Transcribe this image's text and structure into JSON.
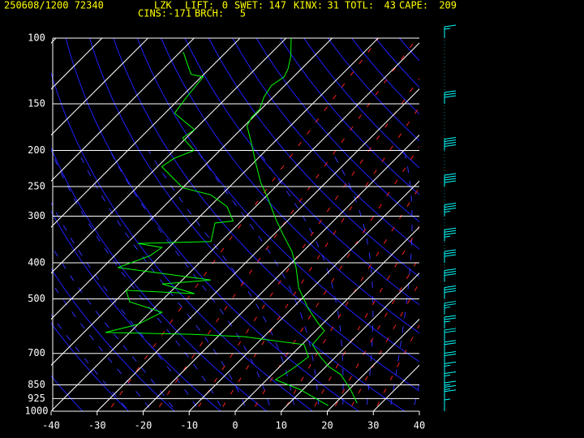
{
  "header": {
    "station_time": "250608/1200 72340",
    "site": "LZK",
    "indices": [
      {
        "label": "LIFT:",
        "value": 0
      },
      {
        "label": "SWET:",
        "value": 147
      },
      {
        "label": "KINX:",
        "value": 31
      },
      {
        "label": "TOTL:",
        "value": 43
      },
      {
        "label": "CAPE:",
        "value": 209
      }
    ],
    "indices_line2": [
      {
        "label": "CINS:",
        "value": -171
      },
      {
        "label": "BRCH:",
        "value": 5
      }
    ]
  },
  "chart_data": {
    "type": "skewt",
    "log_scale": true,
    "xlim": [
      -40,
      40
    ],
    "xticks": [
      -40,
      -30,
      -20,
      -10,
      0,
      10,
      20,
      30,
      40
    ],
    "ylim": [
      1000,
      100
    ],
    "yticks": [
      1000,
      925,
      850,
      700,
      500,
      400,
      300,
      250,
      200,
      150,
      100
    ],
    "series": [
      {
        "color": "#00ff00",
        "pressure": [
          951,
          874,
          798,
          759,
          715,
          663,
          609,
          580,
          530,
          467,
          412,
          373,
          338,
          305,
          269,
          244,
          215,
          190,
          172,
          163,
          155,
          144,
          134,
          127,
          121,
          112,
          100
        ],
        "values": [
          24.7,
          20.3,
          15.0,
          10.6,
          6.7,
          2.3,
          1.9,
          -1.2,
          -6.5,
          -13.0,
          -18.0,
          -22.4,
          -27.7,
          -33.0,
          -39.1,
          -44.1,
          -49.7,
          -55.0,
          -59.4,
          -60.3,
          -60.3,
          -62.0,
          -62.9,
          -62.0,
          -62.9,
          -65.0,
          -68.9
        ]
      },
      {
        "color": "#00ff00",
        "pressure": [
          966,
          874,
          823,
          771,
          715,
          663,
          631,
          622,
          615,
          585,
          543,
          509,
          474,
          484,
          456,
          445,
          412,
          383,
          364,
          355,
          351,
          313,
          309,
          283,
          263,
          252,
          221,
          210,
          200,
          185,
          176,
          159,
          144,
          127,
          125,
          109
        ],
        "values": [
          19.0,
          9.3,
          1.9,
          3.2,
          4.1,
          0.5,
          -14.4,
          -26.4,
          -45.3,
          -40.0,
          -37.4,
          -46.7,
          -50.0,
          -34.4,
          -43.5,
          -33.8,
          -56.7,
          -52.3,
          -51.5,
          -57.6,
          -42.1,
          -45.3,
          -41.8,
          -46.2,
          -52.3,
          -59.9,
          -69.1,
          -68.2,
          -65.6,
          -70.8,
          -70.0,
          -77.9,
          -78.8,
          -79.6,
          -82.8,
          -89.3
        ]
      }
    ],
    "wind": {
      "color": "#00ffff",
      "pressure": [
        1000,
        950,
        925,
        900,
        850,
        800,
        750,
        700,
        650,
        600,
        550,
        500,
        450,
        400,
        350,
        300,
        250,
        200,
        150,
        100
      ],
      "speed": [
        5,
        10,
        15,
        15,
        15,
        15,
        20,
        20,
        20,
        25,
        25,
        30,
        30,
        30,
        35,
        35,
        40,
        40,
        30,
        15
      ]
    }
  }
}
